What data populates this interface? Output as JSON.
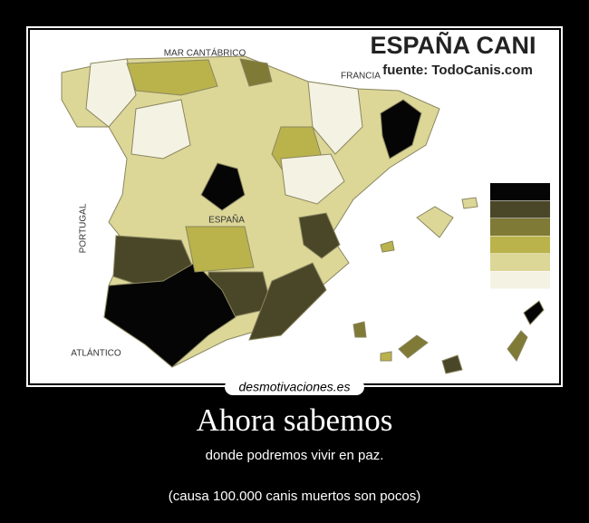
{
  "map": {
    "title": "ESPAÑA CANI",
    "source": "fuente: TodoCanis.com",
    "labels": [
      "MAR CANTÁBRICO",
      "FRANCIA",
      "PORTUGAL",
      "ESPAÑA",
      "ATLÁNTICO"
    ],
    "legend_colors": [
      "#050505",
      "#4a4628",
      "#7f7a36",
      "#bab34c",
      "#dcd797",
      "#f4f2e2"
    ]
  },
  "site": "desmotivaciones.es",
  "caption": {
    "title": "Ahora sabemos",
    "line1": "donde podremos vivir en paz.",
    "line2": "(causa 100.000 canis muertos son pocos)"
  }
}
